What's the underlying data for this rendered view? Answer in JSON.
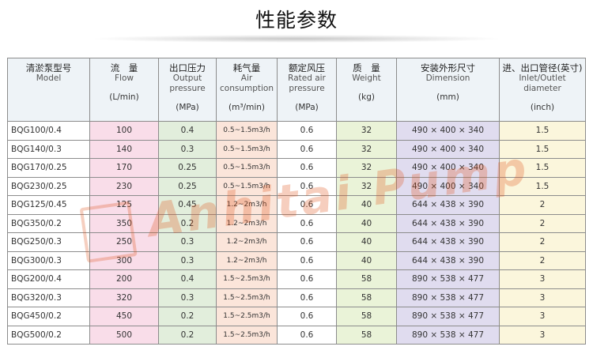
{
  "page": {
    "title": "性能参数"
  },
  "watermark": {
    "text": "Anhitai Pump",
    "color": "#e0541b"
  },
  "colors": {
    "flow_column": "#f9dde9",
    "pressure_column": "#e2eedc",
    "air_column": "#fbe5da",
    "weight_column": "#eaf3d8",
    "dimension_column": "#e0dcef",
    "inlet_column": "#fbf6dc",
    "header_background": "#eef3f7"
  },
  "table": {
    "headers": [
      {
        "cn": "清淤泵型号",
        "en": "Model",
        "unit": ""
      },
      {
        "cn": "流　量",
        "en": "Flow",
        "unit": "(L/min)"
      },
      {
        "cn": "出口压力",
        "en": "Output pressure",
        "unit": "(MPa)"
      },
      {
        "cn": "耗气量",
        "en": "Air consumption",
        "unit": "(m³/min)"
      },
      {
        "cn": "额定风压",
        "en": "Rated air pressure",
        "unit": "(MPa)"
      },
      {
        "cn": "质　量",
        "en": "Weight",
        "unit": "(kg)"
      },
      {
        "cn": "安装外形尺寸",
        "en": "Dimension",
        "unit": "(mm)"
      },
      {
        "cn": "进、出口管径(英寸)",
        "en": "Inlet/Outlet diameter",
        "unit": "(inch)"
      }
    ],
    "rows": [
      [
        "BQG100/0.4",
        "100",
        "0.4",
        "0.5~1.5m3/h",
        "0.6",
        "32",
        "490 × 400 × 340",
        "1.5"
      ],
      [
        "BQG140/0.3",
        "140",
        "0.3",
        "0.5~1.5m3/h",
        "0.6",
        "32",
        "490 × 400 × 340",
        "1.5"
      ],
      [
        "BQG170/0.25",
        "170",
        "0.25",
        "0.5~1.5m3/h",
        "0.6",
        "32",
        "490 × 400 × 340",
        "1.5"
      ],
      [
        "BQG230/0.25",
        "230",
        "0.25",
        "0.5~1.5m3/h",
        "0.6",
        "32",
        "490 × 400 × 340",
        "1.5"
      ],
      [
        "BQG125/0.45",
        "125",
        "0.45",
        "1.2~2m3/h",
        "0.6",
        "40",
        "644 × 438 × 390",
        "2"
      ],
      [
        "BQG350/0.2",
        "350",
        "0.2",
        "1.2~2m3/h",
        "0.6",
        "40",
        "644 × 438 × 390",
        "2"
      ],
      [
        "BQG250/0.3",
        "250",
        "0.3",
        "1.2~2m3/h",
        "0.6",
        "40",
        "644 × 438 × 390",
        "2"
      ],
      [
        "BQG300/0.3",
        "300",
        "0.3",
        "1.2~2m3/h",
        "0.6",
        "40",
        "644 × 438 × 390",
        "2"
      ],
      [
        "BQG200/0.4",
        "200",
        "0.4",
        "1.5~2.5m3/h",
        "0.6",
        "58",
        "890 × 538 × 477",
        "3"
      ],
      [
        "BQG320/0.3",
        "320",
        "0.3",
        "1.5~2.5m3/h",
        "0.6",
        "58",
        "890 × 538 × 477",
        "3"
      ],
      [
        "BQG450/0.2",
        "450",
        "0.2",
        "1.5~2.5m3/h",
        "0.6",
        "58",
        "890 × 538 × 477",
        "3"
      ],
      [
        "BQG500/0.2",
        "500",
        "0.2",
        "1.5~2.5m3/h",
        "0.6",
        "58",
        "890 × 538 × 477",
        "3"
      ]
    ]
  }
}
